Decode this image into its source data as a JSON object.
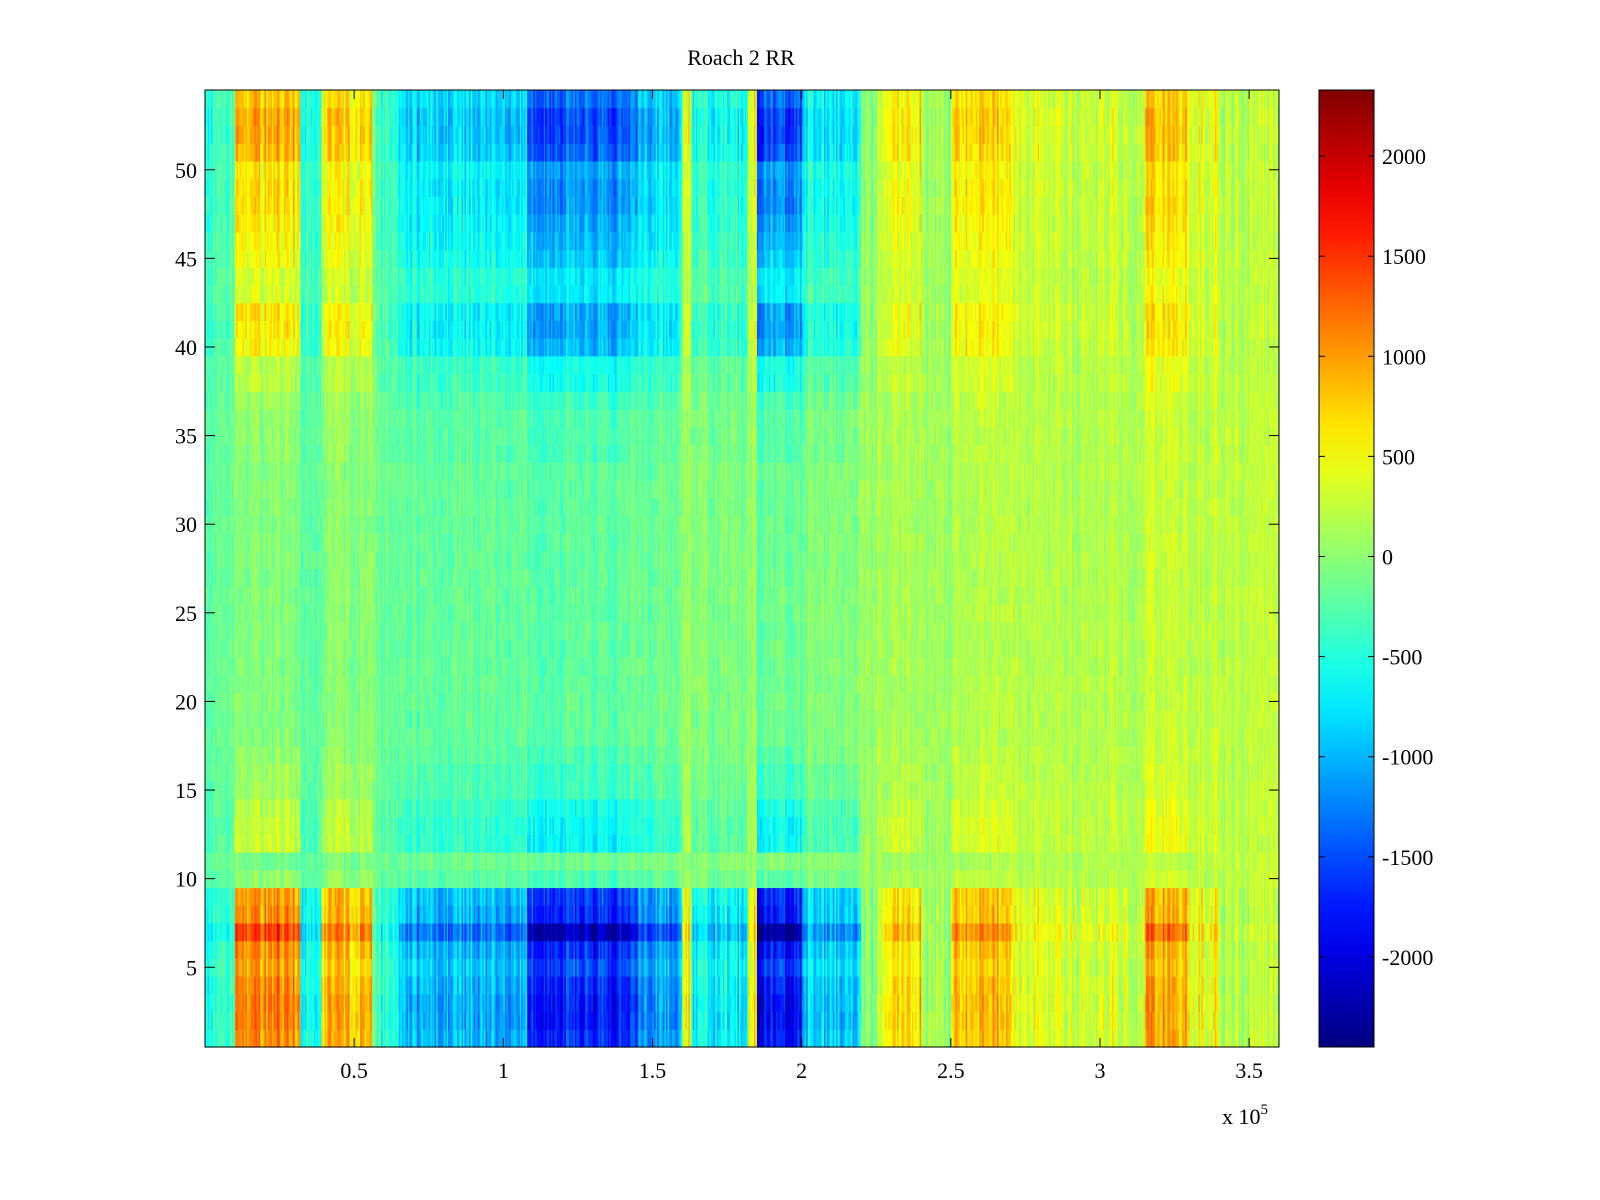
{
  "chart_data": {
    "type": "heatmap",
    "title": "Roach 2 RR",
    "xlabel": "",
    "ylabel": "",
    "x_multiplier_label": "x 10",
    "x_multiplier_exponent": "5",
    "xlim": [
      0,
      360000
    ],
    "ylim": [
      0.5,
      54.5
    ],
    "grid": false,
    "x_ticks": [
      {
        "value": 50000,
        "label": "0.5"
      },
      {
        "value": 100000,
        "label": "1"
      },
      {
        "value": 150000,
        "label": "1.5"
      },
      {
        "value": 200000,
        "label": "2"
      },
      {
        "value": 250000,
        "label": "2.5"
      },
      {
        "value": 300000,
        "label": "3"
      },
      {
        "value": 350000,
        "label": "3.5"
      }
    ],
    "y_ticks": [
      {
        "value": 5,
        "label": "5"
      },
      {
        "value": 10,
        "label": "10"
      },
      {
        "value": 15,
        "label": "15"
      },
      {
        "value": 20,
        "label": "20"
      },
      {
        "value": 25,
        "label": "25"
      },
      {
        "value": 30,
        "label": "30"
      },
      {
        "value": 35,
        "label": "35"
      },
      {
        "value": 40,
        "label": "40"
      },
      {
        "value": 45,
        "label": "45"
      },
      {
        "value": 50,
        "label": "50"
      }
    ],
    "colorbar": {
      "colormap": "jet",
      "range": [
        -2450,
        2330
      ],
      "ticks": [
        {
          "value": 2000,
          "label": "2000"
        },
        {
          "value": 1500,
          "label": "1500"
        },
        {
          "value": 1000,
          "label": "1000"
        },
        {
          "value": 500,
          "label": "500"
        },
        {
          "value": 0,
          "label": "0"
        },
        {
          "value": -500,
          "label": "-500"
        },
        {
          "value": -1000,
          "label": "-1000"
        },
        {
          "value": -1500,
          "label": "-1500"
        },
        {
          "value": -2000,
          "label": "-2000"
        }
      ]
    },
    "rows": 54,
    "column_bands": [
      {
        "x": [
          0,
          10000
        ],
        "v": -550
      },
      {
        "x": [
          10000,
          32000
        ],
        "v": 1150
      },
      {
        "x": [
          32000,
          39000
        ],
        "v": -600
      },
      {
        "x": [
          39000,
          56000
        ],
        "v": 850
      },
      {
        "x": [
          56000,
          65000
        ],
        "v": -450
      },
      {
        "x": [
          65000,
          108000
        ],
        "v": -1050
      },
      {
        "x": [
          108000,
          145000
        ],
        "v": -1750
      },
      {
        "x": [
          145000,
          160000
        ],
        "v": -1150
      },
      {
        "x": [
          160000,
          163000
        ],
        "v": 550
      },
      {
        "x": [
          163000,
          182000
        ],
        "v": -700
      },
      {
        "x": [
          182000,
          185000
        ],
        "v": 600
      },
      {
        "x": [
          185000,
          200000
        ],
        "v": -1900
      },
      {
        "x": [
          200000,
          220000
        ],
        "v": -900
      },
      {
        "x": [
          220000,
          227000
        ],
        "v": 0
      },
      {
        "x": [
          227000,
          240000
        ],
        "v": 750
      },
      {
        "x": [
          240000,
          250000
        ],
        "v": 150
      },
      {
        "x": [
          250000,
          270000
        ],
        "v": 900
      },
      {
        "x": [
          270000,
          315000
        ],
        "v": 350
      },
      {
        "x": [
          315000,
          330000
        ],
        "v": 950
      },
      {
        "x": [
          330000,
          340000
        ],
        "v": 500
      },
      {
        "x": [
          340000,
          360000
        ],
        "v": 200
      }
    ],
    "row_strength": [
      0.95,
      1.0,
      1.0,
      0.95,
      0.85,
      0.95,
      1.25,
      0.95,
      0.9,
      0.15,
      0.05,
      0.35,
      0.35,
      0.3,
      0.2,
      0.2,
      0.15,
      0.1,
      0.1,
      0.1,
      0.1,
      0.1,
      0.1,
      0.1,
      0.1,
      0.1,
      0.1,
      0.1,
      0.1,
      0.1,
      0.1,
      0.1,
      0.1,
      0.15,
      0.15,
      0.15,
      0.2,
      0.3,
      0.3,
      0.55,
      0.6,
      0.6,
      0.4,
      0.4,
      0.5,
      0.55,
      0.6,
      0.65,
      0.65,
      0.6,
      0.8,
      0.85,
      0.85,
      0.75
    ],
    "low_rows_uniform": true
  }
}
